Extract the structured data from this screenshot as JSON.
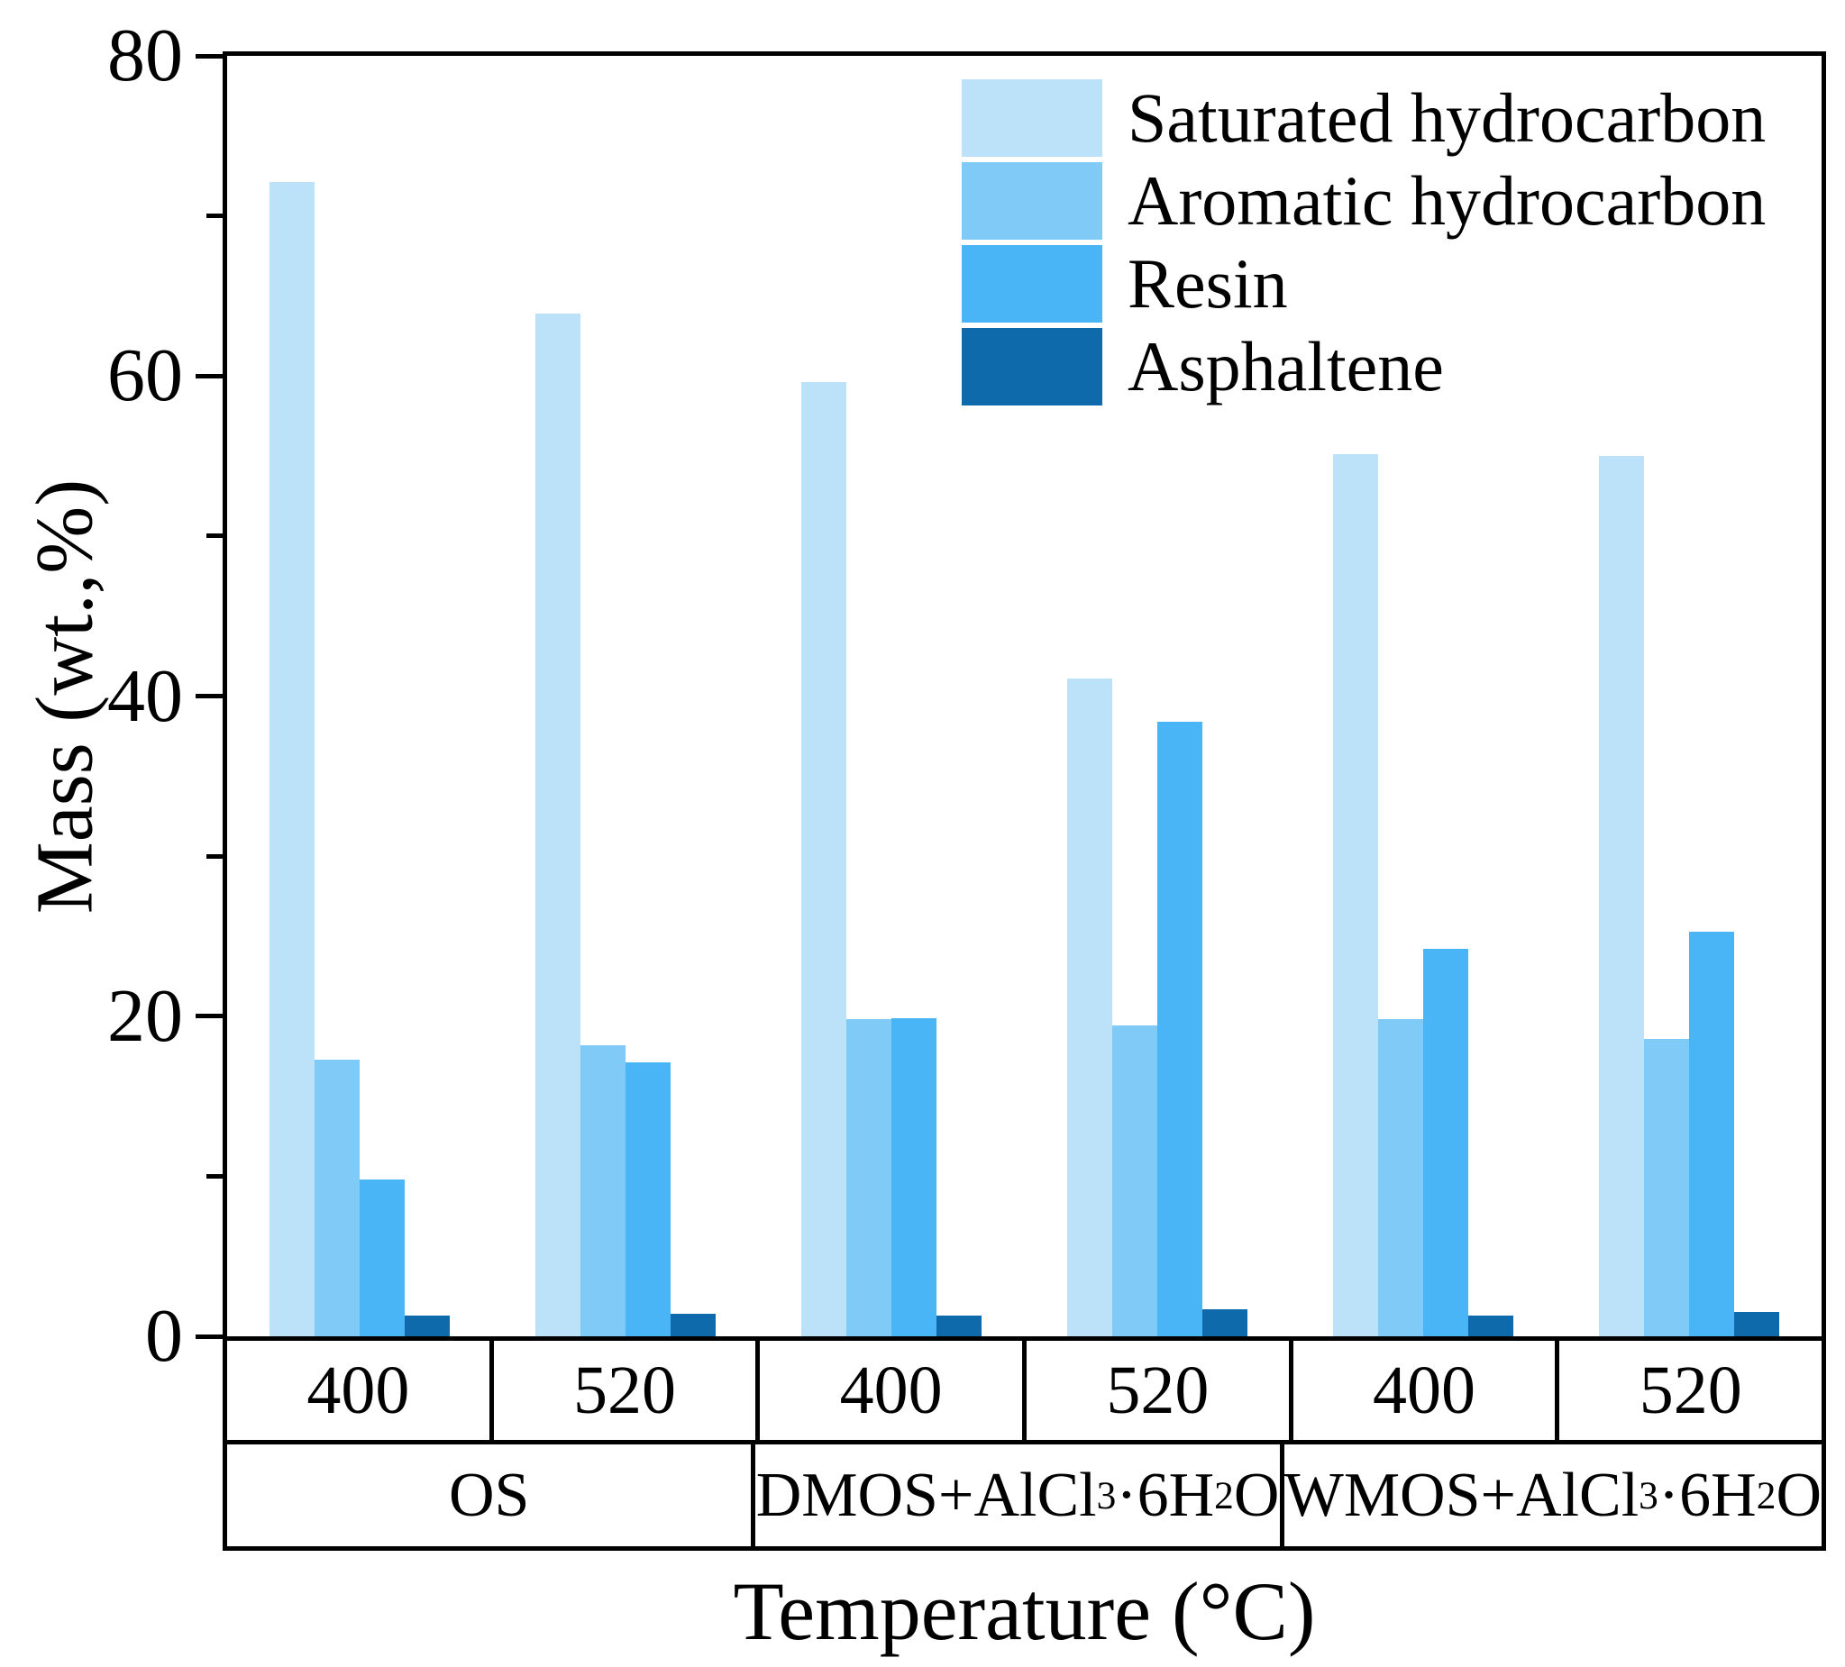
{
  "figure": {
    "xlabel": "Temperature (°C)",
    "ylabel": "Mass (wt.,%)"
  },
  "chart_data": {
    "type": "bar",
    "title": "",
    "xlabel": "Temperature (°C)",
    "ylabel": "Mass (wt.,%)",
    "ylim": [
      0,
      80
    ],
    "y_major_tick_step": 20,
    "y_minor_tick_step": 10,
    "grid": false,
    "legend_position": "top-center-inside",
    "groups": [
      {
        "sample": "OS",
        "temperature": "400"
      },
      {
        "sample": "OS",
        "temperature": "520"
      },
      {
        "sample": "DMOS+AlCl3·6H2O",
        "temperature": "400"
      },
      {
        "sample": "DMOS+AlCl3·6H2O",
        "temperature": "520"
      },
      {
        "sample": "WMOS+AlCl3·6H2O",
        "temperature": "400"
      },
      {
        "sample": "WMOS+AlCl3·6H2O",
        "temperature": "520"
      }
    ],
    "series": [
      {
        "name": "Saturated hydrocarbon",
        "color": "#BCE2FA",
        "values": [
          72.1,
          63.9,
          59.6,
          41.1,
          55.1,
          55.0
        ]
      },
      {
        "name": "Aromatic hydrocarbon",
        "color": "#7FCAF7",
        "values": [
          17.3,
          18.2,
          19.8,
          19.4,
          19.8,
          18.6
        ]
      },
      {
        "name": "Resin",
        "color": "#49B5F6",
        "values": [
          9.8,
          17.1,
          19.9,
          38.4,
          24.2,
          25.3
        ]
      },
      {
        "name": "Asphaltene",
        "color": "#0F6AAC",
        "values": [
          1.3,
          1.4,
          1.3,
          1.7,
          1.3,
          1.5
        ]
      }
    ],
    "x_table": {
      "temperature_row": [
        "400",
        "520",
        "400",
        "520",
        "400",
        "520"
      ],
      "sample_row": [
        {
          "segments": [
            {
              "t": "OS"
            }
          ]
        },
        {
          "segments": [
            {
              "t": "DMOS+AlCl"
            },
            {
              "t": "3",
              "sub": true
            },
            {
              "t": "·6H"
            },
            {
              "t": "2",
              "sub": true
            },
            {
              "t": "O"
            }
          ]
        },
        {
          "segments": [
            {
              "t": "WMOS+AlCl"
            },
            {
              "t": "3",
              "sub": true
            },
            {
              "t": "·6H"
            },
            {
              "t": "2",
              "sub": true
            },
            {
              "t": "O"
            }
          ]
        }
      ]
    }
  }
}
